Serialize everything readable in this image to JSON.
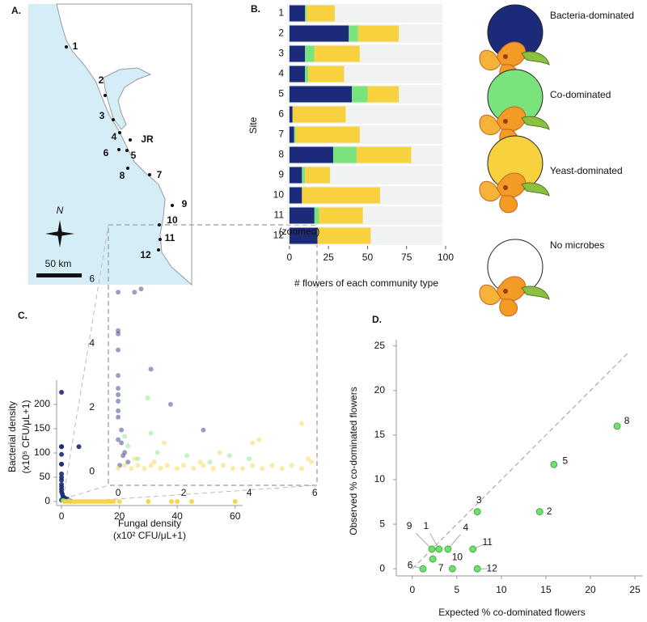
{
  "map": {
    "panel": "A.",
    "sites": [
      "1",
      "2",
      "3",
      "4",
      "JR",
      "5",
      "6",
      "8",
      "7",
      "9",
      "10",
      "11",
      "12"
    ],
    "north": "N",
    "scale": "50 km"
  },
  "chart_data": [
    {
      "type": "bar",
      "panel": "B.",
      "orientation": "horizontal",
      "stacked": true,
      "categories": [
        "1",
        "2",
        "3",
        "4",
        "5",
        "6",
        "7",
        "8",
        "9",
        "10",
        "11",
        "12"
      ],
      "series": [
        {
          "name": "Bacteria-dominated",
          "color": "#1c2a7a",
          "values": [
            10,
            38,
            10,
            10,
            40,
            2,
            3,
            28,
            8,
            8,
            16,
            18
          ]
        },
        {
          "name": "Co-dominated",
          "color": "#7be37b",
          "values": [
            1,
            6,
            6,
            2,
            10,
            0,
            1,
            15,
            2,
            0,
            3,
            0
          ]
        },
        {
          "name": "Yeast-dominated",
          "color": "#f7d23e",
          "values": [
            18,
            26,
            29,
            23,
            20,
            34,
            41,
            35,
            16,
            50,
            28,
            34
          ]
        }
      ],
      "legend_extra": "No microbes",
      "x_label": "# flowers of each community type",
      "y_label": "Site",
      "xlim": [
        -1.5,
        100
      ],
      "xticks": [
        0,
        25,
        50,
        75,
        100
      ]
    },
    {
      "type": "scatter",
      "panel": "C.",
      "x_label": "Fungal density",
      "x_sublabel": "(x10² CFU/μL+1)",
      "y_label": "Bacterial density",
      "y_sublabel": "(x10⁵ CFU/μL+1)",
      "xlim": [
        -1.7,
        62.6
      ],
      "ylim": [
        -8.3,
        250
      ],
      "xticks": [
        0,
        20,
        40,
        60
      ],
      "yticks": [
        0,
        50,
        100,
        150,
        200
      ],
      "axis_lines": true,
      "point_opacity": 0.9,
      "series": [
        {
          "color": "#1c2a7a",
          "x": [
            0,
            0,
            0,
            0,
            0,
            0,
            0,
            0,
            0,
            0,
            0,
            0,
            0,
            0.3,
            0.5,
            1,
            6,
            2,
            0,
            1.5,
            0.8,
            3
          ],
          "values": [
            225,
            113,
            113,
            97,
            77,
            77,
            57,
            50,
            44,
            35,
            30,
            25,
            20,
            15,
            10,
            8,
            113,
            5,
            3,
            2,
            4,
            1
          ]
        },
        {
          "color": "#7be37b",
          "x": [
            1,
            2.5,
            0.5
          ],
          "values": [
            1,
            1.5,
            2
          ]
        },
        {
          "color": "#f7d23e",
          "x": [
            1,
            2,
            3,
            4,
            5,
            6,
            7,
            8,
            9,
            10,
            11,
            12,
            13,
            14,
            15,
            16,
            17,
            18,
            20,
            30,
            38,
            40,
            45,
            60
          ],
          "values": [
            0,
            0,
            0,
            0,
            0,
            0,
            0,
            0,
            0,
            0,
            0,
            0,
            0,
            0,
            0,
            0,
            0,
            0,
            0,
            0,
            0,
            0,
            0,
            0
          ]
        }
      ]
    },
    {
      "type": "scatter",
      "note": "(zoomed)",
      "xlim": [
        -0.15,
        6.07
      ],
      "ylim": [
        -0.35,
        7.6
      ],
      "xticks": [
        0,
        2,
        4,
        6
      ],
      "yticks": [
        0,
        2,
        4,
        6
      ],
      "axis_lines": false,
      "point_opacity": 0.45,
      "series": [
        {
          "color": "#1c2a7a",
          "x": [
            0,
            0,
            0,
            0,
            0,
            0,
            0,
            0,
            0,
            0,
            0.1,
            0,
            0.1,
            0.7,
            0.5,
            1.0,
            1.6,
            2.6,
            0.2,
            0.3,
            0.05,
            0.15
          ],
          "values": [
            5.6,
            4.4,
            4.3,
            3.8,
            3.0,
            2.6,
            2.4,
            2.2,
            1.9,
            1.7,
            1.3,
            1.0,
            0.9,
            5.7,
            5.6,
            3.2,
            2.1,
            1.3,
            0.6,
            0.3,
            0.2,
            0.5
          ]
        },
        {
          "color": "#7be37b",
          "x": [
            0.9,
            1.0,
            0.2,
            0.3,
            2.1,
            3.4,
            4.0,
            0.6,
            1.2,
            2.8
          ],
          "values": [
            2.3,
            1.2,
            1.1,
            0.8,
            0.5,
            0.5,
            0.4,
            0.4,
            0.6,
            0.3
          ]
        },
        {
          "color": "#f7d23e",
          "x": [
            0,
            0.2,
            0.4,
            0.6,
            0.8,
            1.0,
            1.3,
            1.5,
            1.8,
            2.0,
            2.3,
            2.6,
            2.9,
            3.2,
            3.5,
            3.8,
            4.1,
            4.4,
            4.7,
            5.0,
            5.3,
            5.6,
            5.9,
            5.6,
            4.3,
            3.1,
            4.1,
            1.4,
            2.5,
            0.5,
            1.1,
            5.8
          ],
          "values": [
            0.1,
            0.2,
            0.1,
            0.2,
            0.1,
            0.2,
            0.1,
            0.2,
            0.1,
            0.2,
            0.1,
            0.2,
            0.1,
            0.2,
            0.1,
            0.1,
            0.2,
            0.1,
            0.2,
            0.1,
            0.2,
            0.1,
            0.3,
            1.5,
            1.0,
            0.6,
            0.9,
            0.9,
            0.3,
            0.4,
            0.3,
            0.4
          ]
        }
      ]
    },
    {
      "type": "scatter",
      "panel": "D.",
      "x_label": "Expected % co-dominated flowers",
      "y_label": "Observed % co-dominated flowers",
      "xlim": [
        -1.8,
        25.9
      ],
      "ylim": [
        -0.8,
        25.7
      ],
      "xticks": [
        0,
        5,
        10,
        15,
        20,
        25
      ],
      "yticks": [
        0,
        5,
        10,
        15,
        20,
        25
      ],
      "axis_lines": true,
      "identity_line": true,
      "point_opacity": 1,
      "color": "#6ee06e",
      "categories": [
        "1",
        "2",
        "3",
        "4",
        "5",
        "6",
        "7",
        "8",
        "9",
        "10",
        "11",
        "12"
      ],
      "x": [
        3.0,
        14.3,
        7.3,
        4.0,
        15.9,
        1.2,
        2.3,
        23,
        2.2,
        4.5,
        6.8,
        7.3
      ],
      "values": [
        2.2,
        6.4,
        6.4,
        2.2,
        11.7,
        0,
        1.1,
        16,
        2.2,
        0,
        2.2,
        0
      ]
    }
  ]
}
